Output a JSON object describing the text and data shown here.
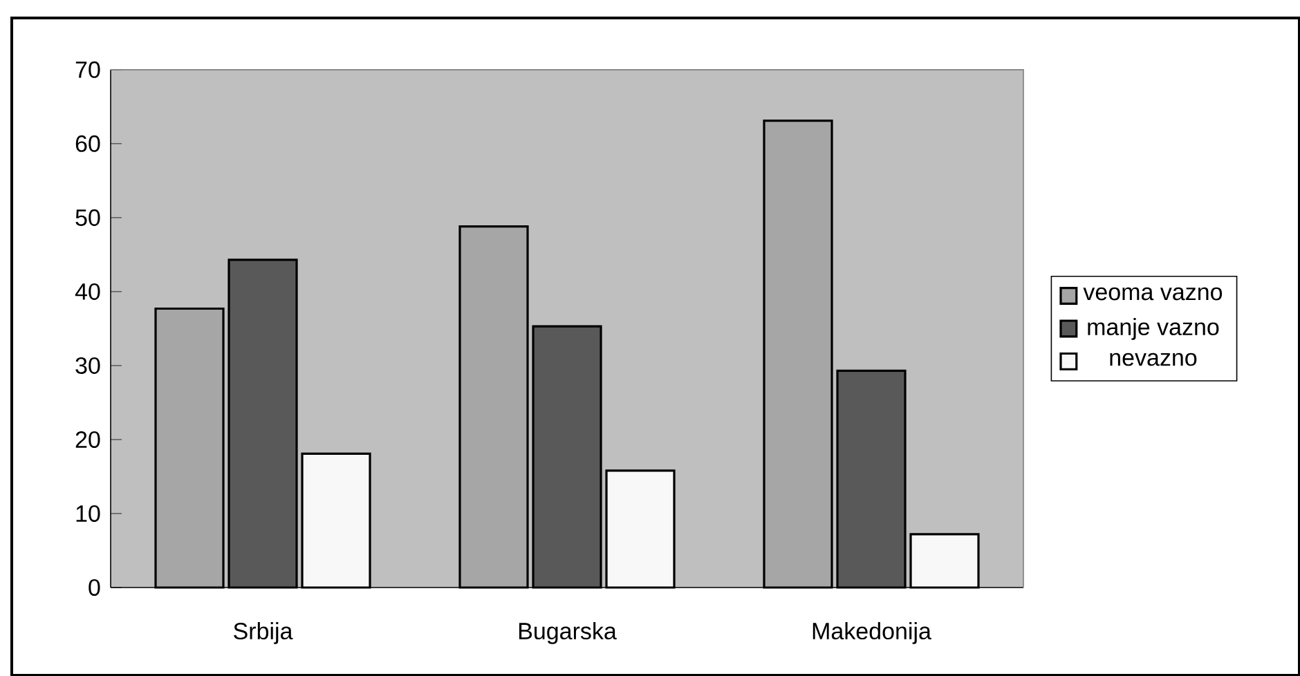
{
  "chart_data": {
    "type": "bar",
    "categories": [
      "Srbija",
      "Bugarska",
      "Makedonija"
    ],
    "series": [
      {
        "name": "veoma vazno",
        "color": "#a6a6a6",
        "values": [
          37.7,
          48.8,
          63.1
        ]
      },
      {
        "name": "manje vazno",
        "color": "#595959",
        "values": [
          44.3,
          35.3,
          29.3
        ]
      },
      {
        "name": "nevazno",
        "color": "#f8f8f8",
        "values": [
          18.1,
          15.8,
          7.2
        ]
      }
    ],
    "ylim": [
      0,
      70
    ],
    "yticks": [
      0,
      10,
      20,
      30,
      40,
      50,
      60,
      70
    ],
    "grid": false,
    "legend": "right"
  }
}
